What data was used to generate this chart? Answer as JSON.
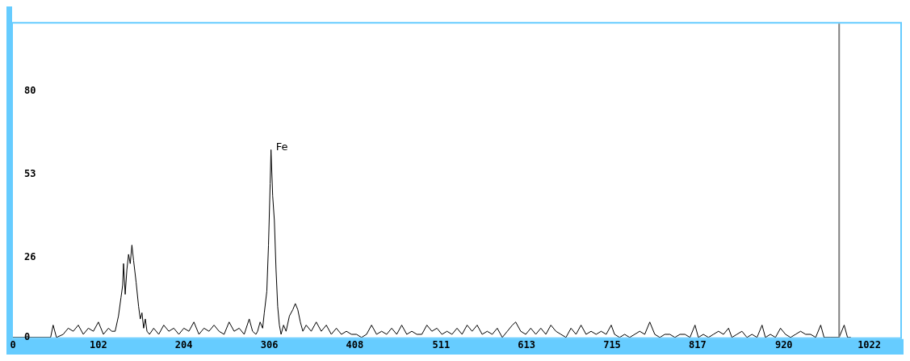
{
  "chart_data": {
    "type": "line",
    "xlim": [
      0,
      1059
    ],
    "ylim": [
      0,
      102
    ],
    "xticks": [
      0,
      102,
      204,
      306,
      408,
      511,
      613,
      715,
      817,
      920,
      1022
    ],
    "yticks": [
      0,
      26,
      53,
      80
    ],
    "grid": false,
    "annotations": [
      {
        "text": "Fe",
        "x": 308,
        "y": 61
      }
    ],
    "ref_lines": [
      {
        "axis": "x",
        "value": 986,
        "color": "#808080"
      }
    ],
    "series": [
      {
        "color": "#000000",
        "x": [
          0,
          45,
          48,
          52,
          60,
          66,
          72,
          78,
          84,
          90,
          96,
          102,
          108,
          114,
          118,
          122,
          126,
          129,
          131,
          132,
          134,
          136,
          138,
          140,
          142,
          144,
          147,
          150,
          152,
          154,
          156,
          158,
          160,
          163,
          168,
          174,
          180,
          186,
          192,
          198,
          204,
          210,
          216,
          222,
          228,
          234,
          240,
          246,
          252,
          258,
          264,
          270,
          276,
          282,
          286,
          290,
          292,
          295,
          298,
          300,
          303,
          305,
          307,
          308,
          310,
          312,
          314,
          316,
          318,
          320,
          323,
          326,
          330,
          334,
          337,
          340,
          343,
          346,
          350,
          356,
          362,
          368,
          374,
          380,
          386,
          392,
          398,
          404,
          410,
          416,
          422,
          428,
          434,
          440,
          446,
          452,
          458,
          464,
          470,
          476,
          482,
          488,
          494,
          500,
          506,
          512,
          518,
          524,
          530,
          536,
          542,
          548,
          554,
          560,
          566,
          572,
          578,
          584,
          590,
          596,
          600,
          606,
          612,
          618,
          624,
          630,
          636,
          642,
          648,
          654,
          660,
          666,
          672,
          678,
          684,
          690,
          696,
          702,
          708,
          714,
          718,
          724,
          730,
          736,
          742,
          748,
          754,
          760,
          766,
          772,
          778,
          784,
          790,
          796,
          802,
          808,
          814,
          818,
          824,
          830,
          836,
          842,
          848,
          854,
          858,
          864,
          870,
          876,
          882,
          888,
          894,
          898,
          904,
          910,
          916,
          922,
          928,
          934,
          940,
          946,
          952,
          958,
          964,
          968,
          976,
          986,
          992,
          996,
          1000
        ],
        "values": [
          0,
          0,
          4,
          0,
          1,
          3,
          2,
          4,
          1,
          3,
          2,
          5,
          1,
          3,
          2,
          2,
          7,
          13,
          17,
          24,
          14,
          22,
          27,
          24,
          30,
          25,
          18,
          10,
          6,
          8,
          3,
          6,
          2,
          1,
          3,
          1,
          4,
          2,
          3,
          1,
          3,
          2,
          5,
          1,
          3,
          2,
          4,
          2,
          1,
          5,
          2,
          3,
          1,
          6,
          2,
          1,
          2,
          5,
          3,
          8,
          15,
          30,
          50,
          61,
          46,
          38,
          22,
          10,
          4,
          1,
          4,
          2,
          7,
          9,
          11,
          9,
          5,
          2,
          4,
          2,
          5,
          2,
          4,
          1,
          3,
          1,
          2,
          1,
          1,
          0,
          1,
          4,
          1,
          2,
          1,
          3,
          1,
          4,
          1,
          2,
          1,
          1,
          4,
          2,
          3,
          1,
          2,
          1,
          3,
          1,
          4,
          2,
          4,
          1,
          2,
          1,
          3,
          0,
          2,
          4,
          5,
          2,
          1,
          3,
          1,
          3,
          1,
          4,
          2,
          1,
          0,
          3,
          1,
          4,
          1,
          2,
          1,
          2,
          1,
          4,
          1,
          0,
          1,
          0,
          1,
          2,
          1,
          5,
          1,
          0,
          1,
          1,
          0,
          1,
          1,
          0,
          4,
          0,
          1,
          0,
          1,
          2,
          1,
          3,
          0,
          1,
          2,
          0,
          1,
          0,
          4,
          0,
          1,
          0,
          3,
          1,
          0,
          1,
          2,
          1,
          1,
          0,
          4,
          0,
          0,
          0,
          4,
          0,
          0
        ]
      }
    ]
  }
}
